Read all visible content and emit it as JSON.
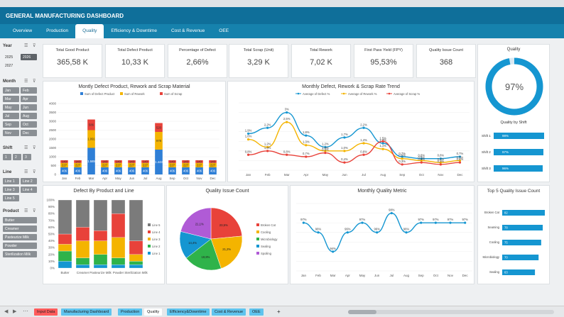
{
  "header": {
    "title": "GENERAL MANUFACTURING DASHBOARD"
  },
  "nav": {
    "tabs": [
      "Overview",
      "Production",
      "Quality",
      "Efficiency & Downtime",
      "Cost & Revenue",
      "OEE"
    ],
    "active": "Quality"
  },
  "filters": {
    "year_label": "Year",
    "years": [
      "2025",
      "2026",
      "2027"
    ],
    "month_label": "Month",
    "months": [
      "Jan",
      "Feb",
      "Mar",
      "Apr",
      "May",
      "Jun",
      "Jul",
      "Aug",
      "Sep",
      "Oct",
      "Nov",
      "Dec"
    ],
    "shift_label": "Shift",
    "shifts": [
      "1",
      "2",
      "3"
    ],
    "line_label": "Line",
    "lines": [
      "Line 1",
      "Line 2",
      "Line 3",
      "Line 4",
      "Line 5"
    ],
    "product_label": "Product",
    "products": [
      "Butter",
      "Creamer",
      "Pasteurize Milk",
      "Powder",
      "Sterilization Milk"
    ]
  },
  "kpis": [
    {
      "title": "Total Good Product",
      "value": "365,58 K"
    },
    {
      "title": "Total Defect Product",
      "value": "10,33 K"
    },
    {
      "title": "Percentage of Defect",
      "value": "2,66%"
    },
    {
      "title": "Total Scrap (Unit)",
      "value": "3,29 K"
    },
    {
      "title": "Total Rework",
      "value": "7,02 K"
    },
    {
      "title": "First Pass Yield (FPY)",
      "value": "95,53%"
    },
    {
      "title": "Quality Issue Count",
      "value": "368"
    }
  ],
  "quality": {
    "title": "Quality",
    "value": "97%",
    "fraction": 0.97,
    "shift_title": "Quality by Shift",
    "shifts": [
      {
        "label": "Shift 1",
        "value": "98%",
        "pct": 98
      },
      {
        "label": "Shift 2",
        "value": "97%",
        "pct": 97
      },
      {
        "label": "Shift 3",
        "value": "96%",
        "pct": 96
      }
    ]
  },
  "colors": {
    "accent": "#1596d1",
    "defect": "#2f7fd6",
    "rework": "#f4b400",
    "scrap": "#e8423a",
    "green": "#2fb34a",
    "purple": "#b05bd6",
    "gray": "#7b7b7b",
    "header": "#0f6f9a"
  },
  "sheet_tabs": [
    {
      "label": "Input Data",
      "color": "#ff5b5b"
    },
    {
      "label": "Manufacturing Dashboard",
      "color": "#5fc4ee"
    },
    {
      "label": "Production",
      "color": "#5fc4ee"
    },
    {
      "label": "Quality",
      "color": "#ffffff"
    },
    {
      "label": "Efficiency&Downtime",
      "color": "#5fc4ee"
    },
    {
      "label": "Cost & Revenue",
      "color": "#5fc4ee"
    },
    {
      "label": "OEE",
      "color": "#5fc4ee"
    }
  ],
  "chart_data": [
    {
      "id": "defect_rework_scrap",
      "type": "bar",
      "title": "Montly Defect Product, Rework and Scrap Material",
      "legend": [
        "Sum of Defect Product",
        "Sum of Rework",
        "Sum of Scrap"
      ],
      "categories": [
        "Jan",
        "Feb",
        "Mar",
        "Apr",
        "May",
        "Jun",
        "Jul",
        "Aug",
        "Sep",
        "Oct",
        "Nov",
        "Dec"
      ],
      "ylim": [
        0,
        4000
      ],
      "yticks": [
        "0",
        "500",
        "1000",
        "1500",
        "2000",
        "2500",
        "3000",
        "3500",
        "4000"
      ],
      "series": [
        {
          "name": "Sum of Defect Product",
          "values": [
            400,
            400,
            1500,
            400,
            400,
            400,
            400,
            1400,
            400,
            400,
            400,
            400
          ]
        },
        {
          "name": "Sum of Rework",
          "values": [
            250,
            250,
            1000,
            250,
            250,
            250,
            250,
            1000,
            250,
            250,
            250,
            250
          ]
        },
        {
          "name": "Sum of Scrap",
          "values": [
            150,
            150,
            600,
            150,
            150,
            150,
            150,
            500,
            150,
            150,
            150,
            150
          ]
        }
      ],
      "data_labels": [
        [
          "406",
          "227",
          "143"
        ],
        [
          "406",
          "227",
          "143"
        ],
        [
          "1.589",
          "1.091",
          "586"
        ],
        [
          "406",
          "227",
          "143"
        ],
        [
          "406",
          "227",
          "143"
        ],
        [
          "406",
          "227",
          "143"
        ],
        [
          "406",
          "227",
          "143"
        ],
        [
          "1.443",
          "978",
          "520"
        ],
        [
          "406",
          "227",
          "143"
        ],
        [
          "406",
          "227",
          "143"
        ],
        [
          "406",
          "227",
          "143"
        ],
        [
          "406",
          "227",
          "143"
        ]
      ]
    },
    {
      "id": "rate_trend",
      "type": "line",
      "title": "Monthly Defect, Rework & Scrap Rate Trend",
      "legend": [
        "Average of Defect %",
        "Average of Rework %",
        "Average of Scrap %"
      ],
      "categories": [
        "Jan",
        "Feb",
        "Mar",
        "Apr",
        "May",
        "Jun",
        "Jul",
        "Aug",
        "Sep",
        "Oct",
        "Nov",
        "Dec"
      ],
      "series": [
        {
          "name": "Average of Defect %",
          "values": [
            1.9,
            2.2,
            3.0,
            1.8,
            1.2,
            1.7,
            2.2,
            1.4,
            0.7,
            0.6,
            0.6,
            0.7
          ],
          "labels": [
            "1,9%",
            "2,2%",
            "3%",
            "1,8%",
            "1,2%",
            "1,7%",
            "2,2%",
            "1,4%",
            "0,7%",
            "0,6%",
            "0,6%",
            "0,7%"
          ]
        },
        {
          "name": "Average of Rework %",
          "values": [
            1.6,
            1.2,
            2.5,
            1.3,
            1.0,
            1.0,
            1.4,
            1.1,
            0.6,
            0.5,
            0.4,
            0.5
          ],
          "labels": [
            "1,6%",
            "1,2%",
            "2,5%",
            "1,3%",
            "1,0%",
            "1,0%",
            "1,4%",
            "1,1%",
            "0,6%",
            "0,5%",
            "0,4%",
            "0,5%"
          ]
        },
        {
          "name": "Average of Scrap %",
          "values": [
            0.8,
            1.0,
            0.8,
            0.7,
            0.9,
            0.4,
            0.8,
            1.5,
            0.3,
            0.4,
            0.3,
            0.4
          ],
          "labels": [
            "0,8%",
            "1,0%",
            "0,8%",
            "0,7%",
            "0,9%",
            "0,4%",
            "0,8%",
            "1,5%",
            "0,3%",
            "0,4%",
            "0,3%",
            "0,4%"
          ]
        }
      ],
      "ylim": [
        0,
        3.5
      ]
    },
    {
      "id": "defect_by_product_line",
      "type": "bar",
      "stacked": "percent",
      "title": "Defect By Product and Line",
      "categories": [
        "Butter",
        "Creamer",
        "Pasteurize Milk",
        "Powder",
        "Sterilization Milk"
      ],
      "yticks": [
        "0%",
        "10%",
        "20%",
        "30%",
        "40%",
        "50%",
        "60%",
        "70%",
        "80%",
        "90%",
        "100%"
      ],
      "series": [
        {
          "name": "Line 1",
          "values": [
            10,
            5,
            5,
            5,
            5
          ]
        },
        {
          "name": "Line 2",
          "values": [
            15,
            10,
            15,
            10,
            5
          ]
        },
        {
          "name": "Line 3",
          "values": [
            10,
            25,
            20,
            30,
            10
          ]
        },
        {
          "name": "Line 4",
          "values": [
            15,
            20,
            15,
            35,
            20
          ]
        },
        {
          "name": "Line 5",
          "values": [
            50,
            40,
            45,
            20,
            60
          ]
        }
      ],
      "legend": [
        "Line 5",
        "Line 4",
        "Line 3",
        "Line 2",
        "Line 1"
      ]
    },
    {
      "id": "quality_issue_count",
      "type": "pie",
      "title": "Quality Issue Count",
      "slices": [
        {
          "name": "Broken Cat",
          "value": 23.5,
          "label": "23,5%"
        },
        {
          "name": "Cooling",
          "value": 21.2,
          "label": "21,2%"
        },
        {
          "name": "Microbiology",
          "value": 19.8,
          "label": "19,8%"
        },
        {
          "name": "Sealing",
          "value": 14.4,
          "label": "14,4%"
        },
        {
          "name": "Spoiling",
          "value": 21.1,
          "label": "21,1%"
        }
      ]
    },
    {
      "id": "monthly_quality_metric",
      "type": "line",
      "title": "Monthly Quality Metric",
      "categories": [
        "Jan",
        "Feb",
        "Mar",
        "Apr",
        "May",
        "Jun",
        "Jul",
        "Aug",
        "Sep",
        "Oct",
        "Nov",
        "Dec"
      ],
      "values": [
        97,
        96,
        94,
        96,
        97,
        96,
        98,
        96,
        97,
        97,
        97,
        97
      ],
      "labels": [
        "97%",
        "96%",
        "94%",
        "96%",
        "97%",
        "96%",
        "98%",
        "96%",
        "97%",
        "97%",
        "97%",
        "97%"
      ]
    },
    {
      "id": "top5_quality_issue",
      "type": "bar",
      "orientation": "horizontal",
      "title": "Top 5 Quality Issue Count",
      "categories": [
        "Broken Cat",
        "Seaming",
        "Cooling",
        "Microbiology",
        "Sealing"
      ],
      "values": [
        82,
        78,
        75,
        70,
        63
      ]
    }
  ]
}
